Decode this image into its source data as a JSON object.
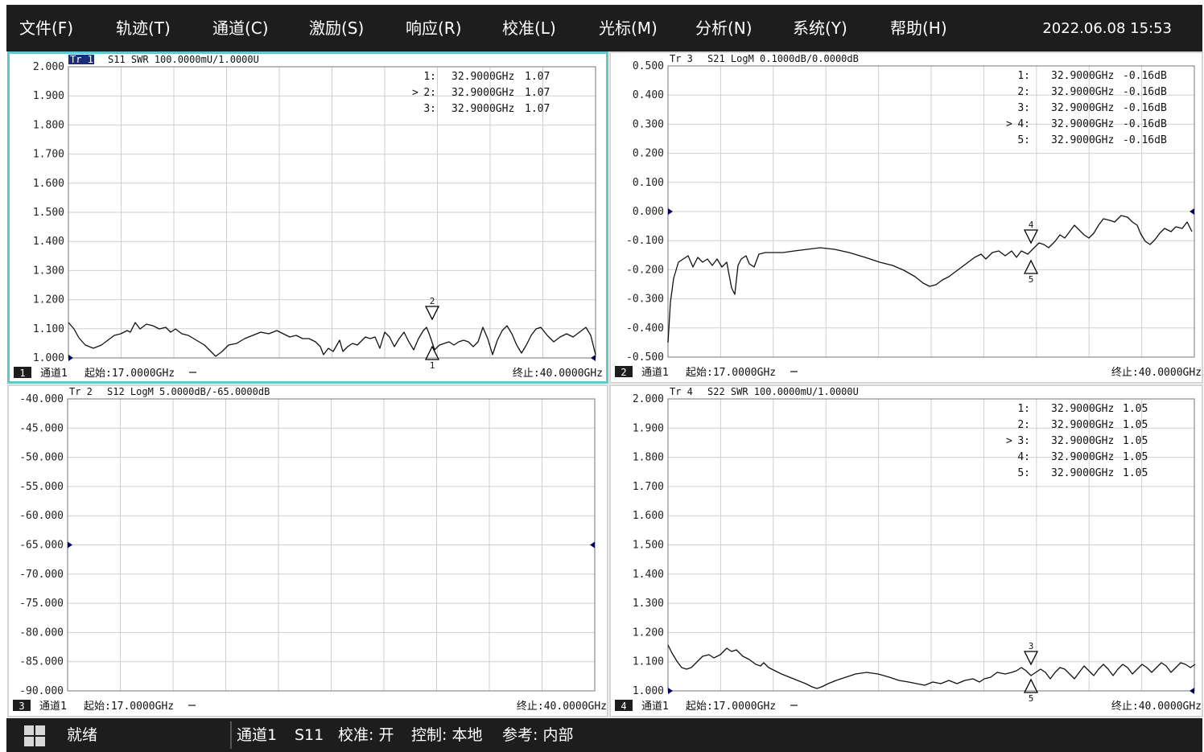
{
  "menu": {
    "items": [
      {
        "label": "文件(F)"
      },
      {
        "label": "轨迹(T)"
      },
      {
        "label": "通道(C)"
      },
      {
        "label": "激励(S)"
      },
      {
        "label": "响应(R)"
      },
      {
        "label": "校准(L)"
      },
      {
        "label": "光标(M)"
      },
      {
        "label": "分析(N)"
      },
      {
        "label": "系统(Y)"
      },
      {
        "label": "帮助(H)"
      }
    ],
    "datetime": "2022.06.08 15:53"
  },
  "colors": {
    "bar": "#1d1d1d",
    "active_border": "#5fc8cd",
    "grid": "#cfcfcf",
    "trace": "#000000",
    "ref_marker": "#000060"
  },
  "panels": [
    {
      "id": 1,
      "trace_title": "S11 SWR 100.0000mU/1.0000U",
      "trace_badge": "Tr 1",
      "y_ticks": [
        "2.000",
        "1.900",
        "1.800",
        "1.700",
        "1.600",
        "1.500",
        "1.400",
        "1.300",
        "1.200",
        "1.100",
        "1.000"
      ],
      "markers": [
        {
          "label": "1:",
          "freq": "32.9000GHz",
          "value": "1.07",
          "active": false
        },
        {
          "label": "2:",
          "freq": "32.9000GHz",
          "value": "1.07",
          "active": true
        },
        {
          "label": "3:",
          "freq": "32.9000GHz",
          "value": "1.07",
          "active": false
        }
      ],
      "marker_ids": [
        "2",
        "1"
      ],
      "channel_no": "1",
      "channel": "通道1",
      "start": "起始:17.0000GHz",
      "stop": "终止:40.0000GHz"
    },
    {
      "id": 2,
      "trace_title": "S21 LogM 0.1000dB/0.0000dB",
      "trace_badge": "Tr 3",
      "y_ticks": [
        "0.500",
        "0.400",
        "0.300",
        "0.200",
        "0.100",
        "0.000",
        "-0.100",
        "-0.200",
        "-0.300",
        "-0.400",
        "-0.500"
      ],
      "markers": [
        {
          "label": "1:",
          "freq": "32.9000GHz",
          "value": "-0.16dB",
          "active": false
        },
        {
          "label": "2:",
          "freq": "32.9000GHz",
          "value": "-0.16dB",
          "active": false
        },
        {
          "label": "3:",
          "freq": "32.9000GHz",
          "value": "-0.16dB",
          "active": false
        },
        {
          "label": "4:",
          "freq": "32.9000GHz",
          "value": "-0.16dB",
          "active": true
        },
        {
          "label": "5:",
          "freq": "32.9000GHz",
          "value": "-0.16dB",
          "active": false
        }
      ],
      "marker_ids": [
        "4",
        "5"
      ],
      "channel_no": "2",
      "channel": "通道1",
      "start": "起始:17.0000GHz",
      "stop": "终止:40.0000GHz"
    },
    {
      "id": 3,
      "trace_title": "S12 LogM 5.0000dB/-65.0000dB",
      "trace_badge": "Tr 2",
      "y_ticks": [
        "-40.000",
        "-45.000",
        "-50.000",
        "-55.000",
        "-60.000",
        "-65.000",
        "-70.000",
        "-75.000",
        "-80.000",
        "-85.000",
        "-90.000"
      ],
      "markers": [],
      "marker_ids": [],
      "channel_no": "3",
      "channel": "通道1",
      "start": "起始:17.0000GHz",
      "stop": "终止:40.0000GHz"
    },
    {
      "id": 4,
      "trace_title": "S22 SWR 100.0000mU/1.0000U",
      "trace_badge": "Tr 4",
      "y_ticks": [
        "2.000",
        "1.900",
        "1.800",
        "1.700",
        "1.600",
        "1.500",
        "1.400",
        "1.300",
        "1.200",
        "1.100",
        "1.000"
      ],
      "markers": [
        {
          "label": "1:",
          "freq": "32.9000GHz",
          "value": "1.05",
          "active": false
        },
        {
          "label": "2:",
          "freq": "32.9000GHz",
          "value": "1.05",
          "active": false
        },
        {
          "label": "3:",
          "freq": "32.9000GHz",
          "value": "1.05",
          "active": true
        },
        {
          "label": "4:",
          "freq": "32.9000GHz",
          "value": "1.05",
          "active": false
        },
        {
          "label": "5:",
          "freq": "32.9000GHz",
          "value": "1.05",
          "active": false
        }
      ],
      "marker_ids": [
        "3",
        "5"
      ],
      "channel_no": "4",
      "channel": "通道1",
      "start": "起始:17.0000GHz",
      "stop": "终止:40.0000GHz"
    }
  ],
  "status": {
    "ready": "就绪",
    "items": [
      "通道1",
      "S11",
      "校准: 开",
      "控制: 本地",
      "参考: 内部"
    ]
  }
}
